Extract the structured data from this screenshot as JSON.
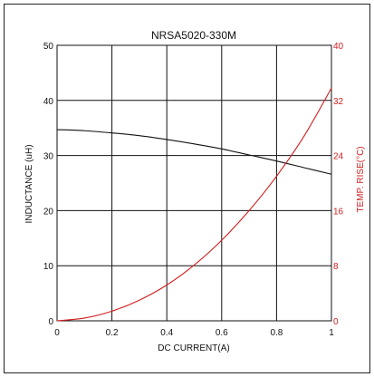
{
  "chart_data": {
    "type": "line",
    "title": "NRSA5020-330M",
    "xlabel": "DC CURRENT(A)",
    "ylabel_left": "INDUCTANCE (uH)",
    "ylabel_right": "TEMP. RISE(°C)",
    "xlim": [
      0,
      1
    ],
    "ylim_left": [
      0,
      50
    ],
    "ylim_right": [
      0,
      40
    ],
    "x_ticks": [
      "0",
      "0.2",
      "0.4",
      "0.6",
      "0.8",
      "1"
    ],
    "y_left_ticks": [
      "0",
      "10",
      "20",
      "30",
      "40",
      "50"
    ],
    "y_right_ticks": [
      "0",
      "8",
      "16",
      "24",
      "32",
      "40"
    ],
    "grid": true,
    "series": [
      {
        "axis": "left",
        "color": "#111111",
        "x": [
          0,
          0.1,
          0.2,
          0.3,
          0.4,
          0.5,
          0.6,
          0.7,
          0.8,
          0.9,
          1.0
        ],
        "values": [
          34.7,
          34.5,
          34.1,
          33.6,
          32.9,
          32.1,
          31.2,
          30.1,
          29.0,
          27.8,
          26.6
        ]
      },
      {
        "axis": "right",
        "color": "#d21e1e",
        "x": [
          0,
          0.1,
          0.2,
          0.3,
          0.4,
          0.5,
          0.6,
          0.7,
          0.8,
          0.9,
          1.0
        ],
        "values": [
          0,
          0.4,
          1.4,
          3.0,
          5.2,
          8.1,
          11.7,
          16.0,
          21.0,
          26.8,
          33.8
        ]
      }
    ]
  }
}
